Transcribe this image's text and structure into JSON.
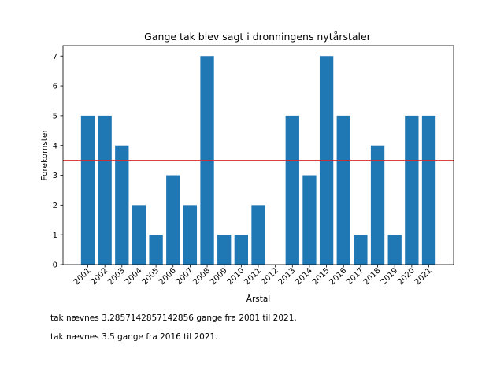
{
  "chart_data": {
    "type": "bar",
    "title": "Gange tak blev sagt i dronningens nytårstaler",
    "xlabel": "Årstal",
    "ylabel": "Forekomster",
    "categories": [
      "2001",
      "2002",
      "2003",
      "2004",
      "2005",
      "2006",
      "2007",
      "2008",
      "2009",
      "2010",
      "2011",
      "2012",
      "2013",
      "2014",
      "2015",
      "2016",
      "2017",
      "2018",
      "2019",
      "2020",
      "2021"
    ],
    "values": [
      5,
      5,
      4,
      2,
      1,
      3,
      2,
      7,
      1,
      1,
      2,
      0,
      5,
      3,
      7,
      5,
      1,
      4,
      1,
      5,
      5
    ],
    "ylim": [
      0,
      7.35
    ],
    "yticks": [
      0,
      1,
      2,
      3,
      4,
      5,
      6,
      7
    ],
    "bar_color": "#1f77b4",
    "reference_line": {
      "value": 3.5,
      "color": "#d62728"
    },
    "grid": false
  },
  "notes": {
    "line1": "tak nævnes 3.2857142857142856 gange fra 2001 til 2021.",
    "line2": "tak nævnes 3.5 gange fra 2016 til 2021."
  }
}
